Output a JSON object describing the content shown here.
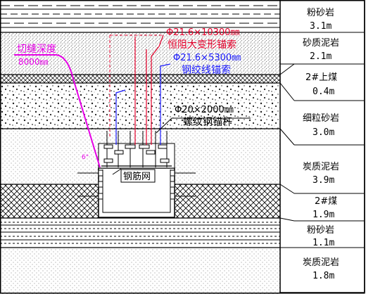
{
  "annotations": {
    "cut_depth_label": "切缝深度",
    "cut_depth_value": "8000㎜",
    "long_cable_spec": "Φ21.6×10300㎜",
    "long_cable_name": "恒阻大变形锚索",
    "short_cable_spec": "Φ21.6×5300㎜",
    "short_cable_name": "钢绞线锚索",
    "bolt_spec": "Φ20×2000㎜",
    "bolt_name": "螺纹钢锚杆",
    "mesh_label": "钢筋网",
    "cut_angle": "6°"
  },
  "colors": {
    "red": "#e5002b",
    "blue": "#1a1aff",
    "magenta": "#e600e6",
    "black": "#000000"
  },
  "strata": [
    {
      "name": "粉砂岩",
      "thickness": "3.1m",
      "pattern": "dash-lines"
    },
    {
      "name": "砂质泥岩",
      "thickness": "2.1m",
      "pattern": "sandy-dots"
    },
    {
      "name": "2#上煤",
      "thickness": "0.4m",
      "pattern": "coal-thin"
    },
    {
      "name": "细粒砂岩",
      "thickness": "3.0m",
      "pattern": "gravel"
    },
    {
      "name": "炭质泥岩",
      "thickness": "3.9m",
      "pattern": "fine-dots"
    },
    {
      "name": "2#煤",
      "thickness": "1.9m",
      "pattern": "coal"
    },
    {
      "name": "粉砂岩",
      "thickness": "1.1m",
      "pattern": "dash-dense"
    },
    {
      "name": "炭质泥岩",
      "thickness": "1.8m",
      "pattern": "fine-dots"
    }
  ]
}
